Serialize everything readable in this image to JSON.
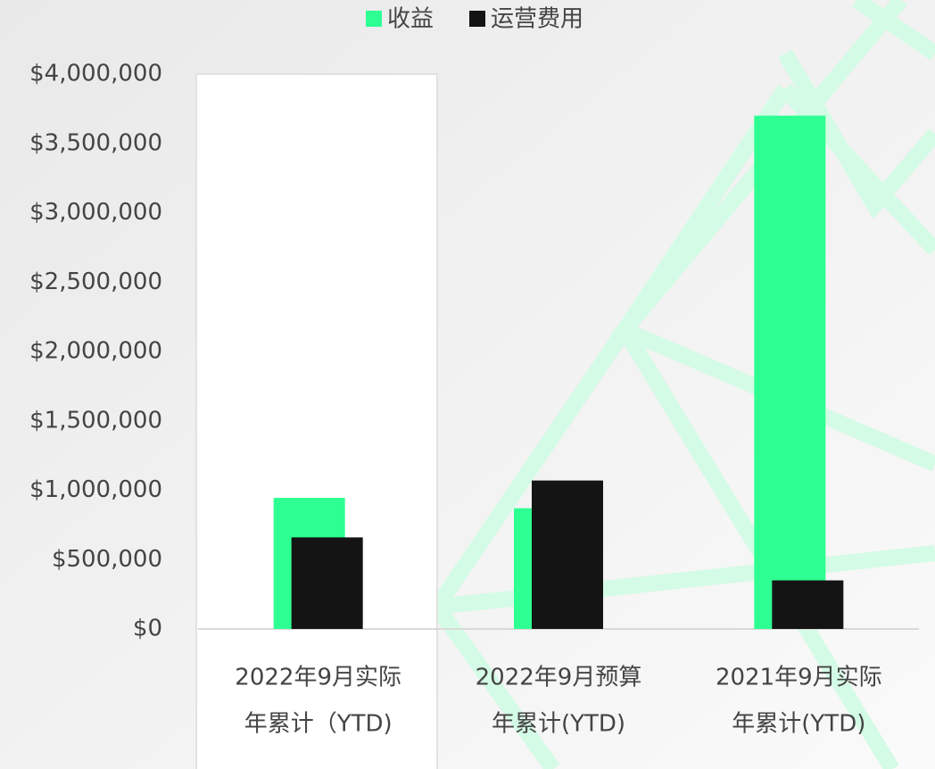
{
  "chart_data": {
    "type": "bar",
    "categories": [
      [
        "2022年9月实际",
        "年累计（YTD)"
      ],
      [
        "2022年9月预算",
        "年累计(YTD)"
      ],
      [
        "2021年9月实际",
        "年累计(YTD)"
      ]
    ],
    "series": [
      {
        "name": "收益",
        "color": "#2eff92",
        "values": [
          945000,
          870000,
          3700000
        ]
      },
      {
        "name": "运营费用",
        "color": "#141414",
        "values": [
          660000,
          1070000,
          350000
        ]
      }
    ],
    "ylim": [
      0,
      4000000
    ],
    "yticks": [
      {
        "value": 0,
        "label": "$0"
      },
      {
        "value": 500000,
        "label": "$500,000"
      },
      {
        "value": 1000000,
        "label": "$1,000,000"
      },
      {
        "value": 1500000,
        "label": "$1,500,000"
      },
      {
        "value": 2000000,
        "label": "$2,000,000"
      },
      {
        "value": 2500000,
        "label": "$2,500,000"
      },
      {
        "value": 3000000,
        "label": "$3,000,000"
      },
      {
        "value": 3500000,
        "label": "$3,500,000"
      },
      {
        "value": 4000000,
        "label": "$4,000,000"
      }
    ],
    "legend": "top"
  }
}
